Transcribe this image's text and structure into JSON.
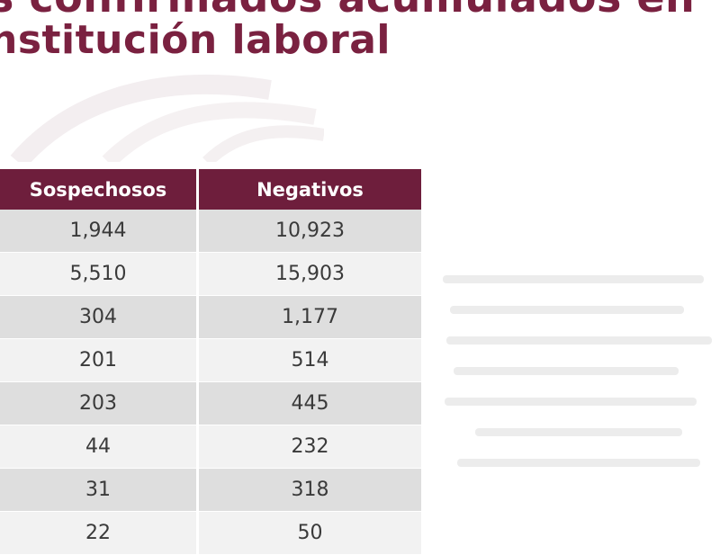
{
  "title": {
    "line1": "s confirmados acumulados en",
    "line2": "nstitución laboral"
  },
  "colors": {
    "accent": "#7a2140",
    "header_bg": "#6e1e3c",
    "row_dark": "#dedede",
    "row_light": "#f2f2f2"
  },
  "table": {
    "headers": [
      "Sospechosos",
      "Negativos"
    ],
    "rows": [
      [
        "1,944",
        "10,923"
      ],
      [
        "5,510",
        "15,903"
      ],
      [
        "304",
        "1,177"
      ],
      [
        "201",
        "514"
      ],
      [
        "203",
        "445"
      ],
      [
        "44",
        "232"
      ],
      [
        "31",
        "318"
      ],
      [
        "22",
        "50"
      ]
    ]
  }
}
